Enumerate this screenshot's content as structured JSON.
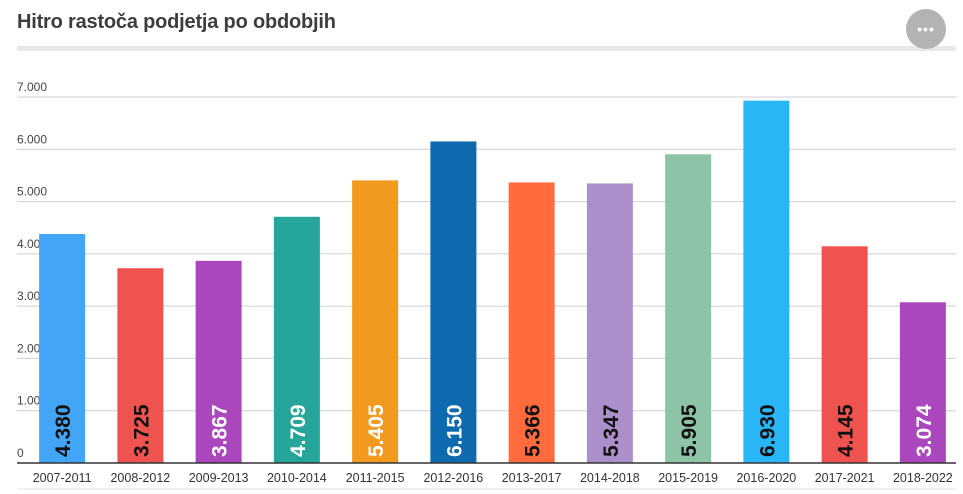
{
  "header": {
    "title": "Hitro rastoča podjetja po obdobjih",
    "menu_label": "•••"
  },
  "chart_data": {
    "type": "bar",
    "title": "Hitro rastoča podjetja po obdobjih",
    "xlabel": "",
    "ylabel": "",
    "ylim": [
      0,
      7000
    ],
    "yticks": [
      0,
      1000,
      2000,
      3000,
      4000,
      5000,
      6000,
      7000
    ],
    "ytick_labels": [
      "0",
      "1.000",
      "2.000",
      "3.000",
      "4.000",
      "5.000",
      "6.000",
      "7.000"
    ],
    "grid": true,
    "legend": "none",
    "categories": [
      "2007-2011",
      "2008-2012",
      "2009-2013",
      "2010-2014",
      "2011-2015",
      "2012-2016",
      "2013-2017",
      "2014-2018",
      "2015-2019",
      "2016-2020",
      "2017-2021",
      "2018-2022"
    ],
    "values": [
      4380,
      3725,
      3867,
      4709,
      5405,
      6150,
      5366,
      5347,
      5905,
      6930,
      4145,
      3074
    ],
    "value_labels": [
      "4.380",
      "3.725",
      "3.867",
      "4.709",
      "5.405",
      "6.150",
      "5.366",
      "5.347",
      "5.905",
      "6.930",
      "4.145",
      "3.074"
    ],
    "colors": [
      "#42a5f5",
      "#ef5350",
      "#ab47bc",
      "#26a69a",
      "#f29a1f",
      "#0d6aae",
      "#ff6b3d",
      "#ab8fcb",
      "#8dc3a7",
      "#29b6f6",
      "#ef5350",
      "#ab47bc"
    ],
    "label_colors": [
      "#111111",
      "#111111",
      "#ffffff",
      "#ffffff",
      "#ffffff",
      "#ffffff",
      "#111111",
      "#111111",
      "#111111",
      "#111111",
      "#111111",
      "#ffffff"
    ]
  }
}
